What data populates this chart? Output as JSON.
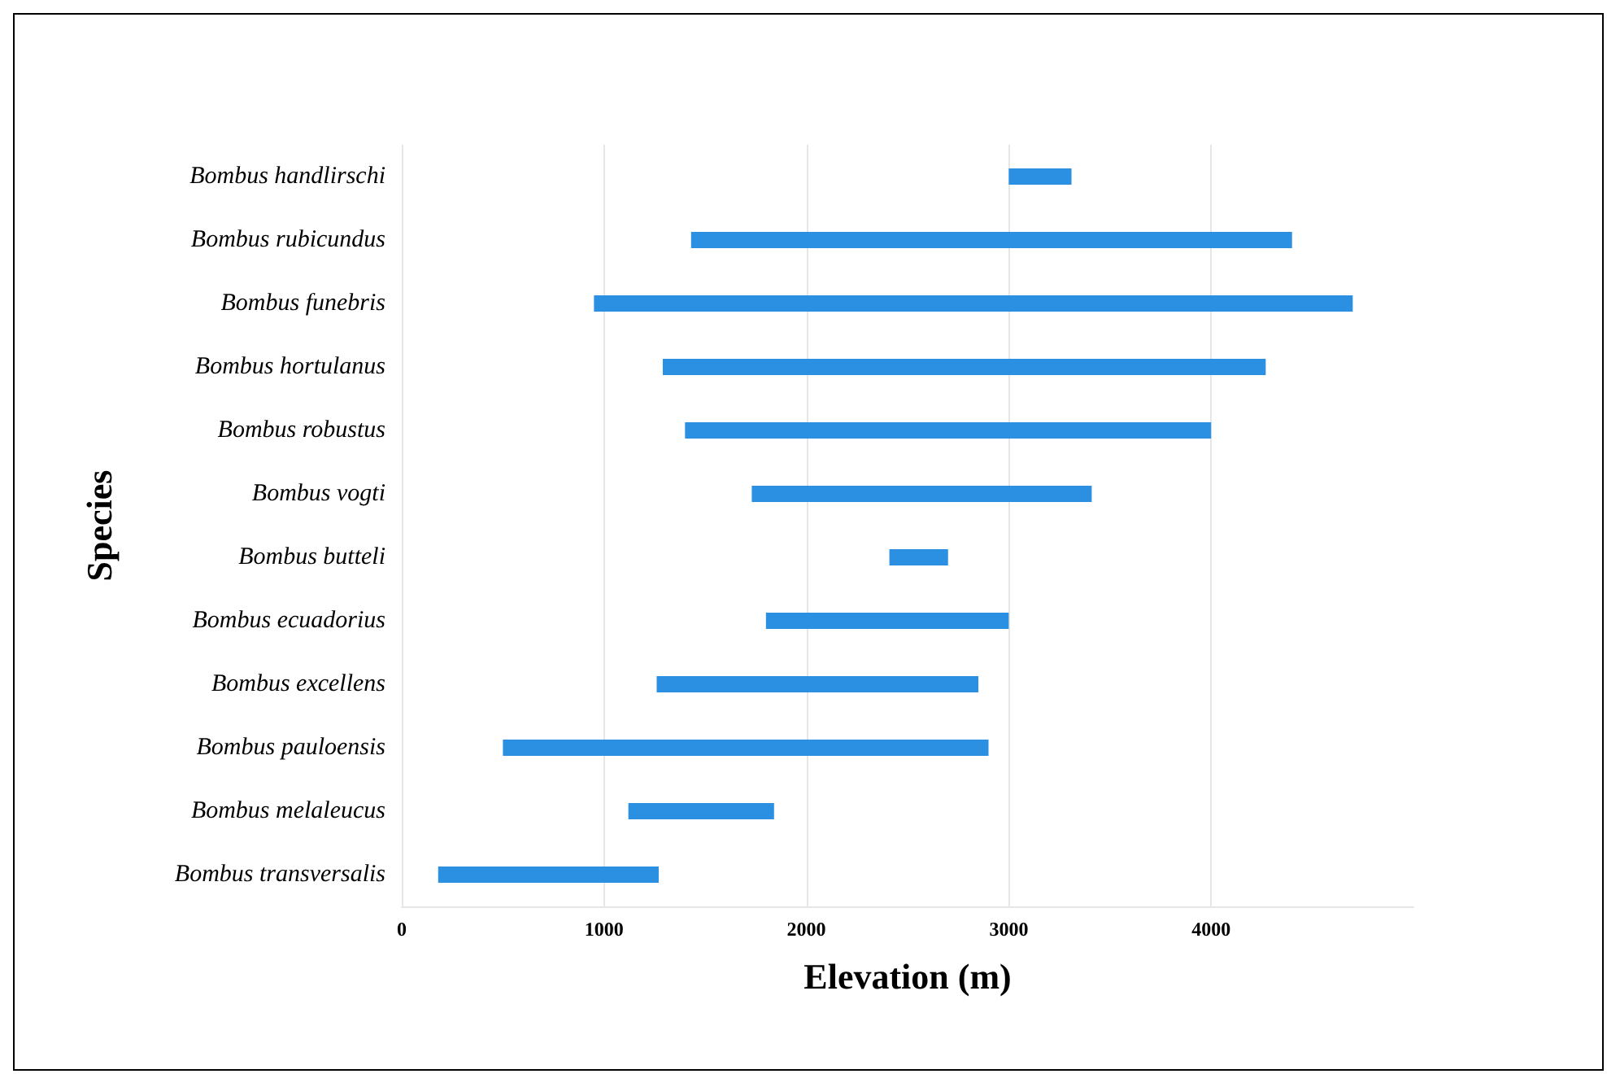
{
  "chart_data": {
    "type": "bar",
    "orientation": "horizontal",
    "xlabel": "Elevation (m)",
    "ylabel": "Species",
    "categories": [
      "Bombus handlirschi",
      "Bombus rubicundus",
      "Bombus funebris",
      "Bombus hortulanus",
      "Bombus robustus",
      "Bombus vogti",
      "Bombus butteli",
      "Bombus ecuadorius",
      "Bombus excellens",
      "Bombus pauloensis",
      "Bombus melaleucus",
      "Bombus transversalis"
    ],
    "base": [
      3000,
      1430,
      950,
      1290,
      1400,
      1730,
      2410,
      1800,
      1260,
      500,
      1120,
      180
    ],
    "values": [
      310,
      2970,
      3750,
      2980,
      2600,
      1680,
      290,
      1200,
      1590,
      2400,
      720,
      1090
    ],
    "color": "#2b8fe2",
    "xlim": [
      0,
      5000
    ],
    "xticks": [
      0,
      1000,
      2000,
      3000,
      4000
    ],
    "grid": "x"
  }
}
